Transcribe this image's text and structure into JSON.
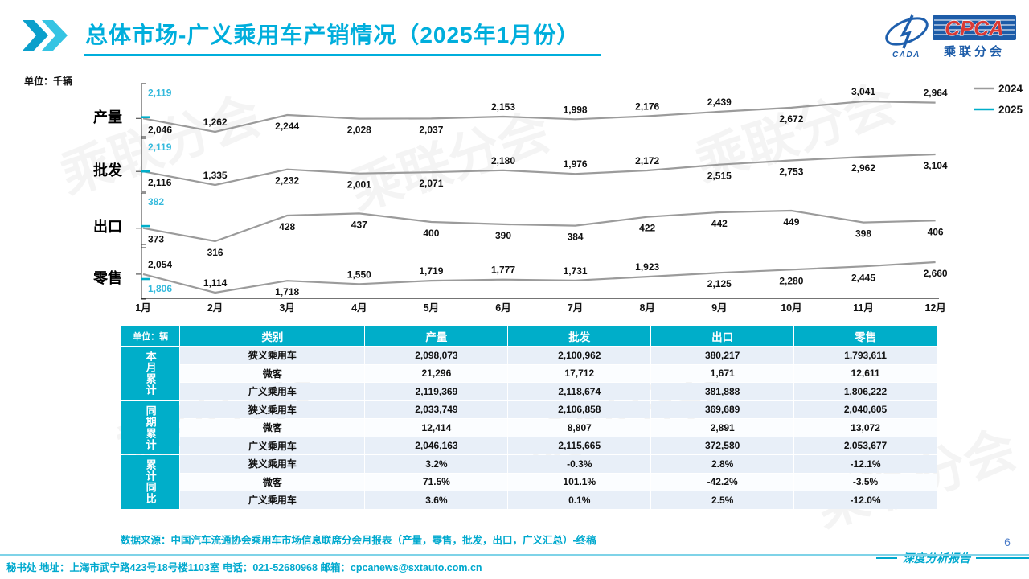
{
  "page": {
    "title": "总体市场-广义乘用车产销情况（2025年1月份）",
    "page_number": "6",
    "report_tag": "深度分析报告",
    "data_source": "数据来源：中国汽车流通协会乘用车市场信息联席分会月报表（产量，零售，批发，出口，广义汇总）-终稿",
    "footer": "秘书处  地址：上海市武宁路423号18号楼1103室 电话：021-52680968  邮箱：cpcanews@sxtauto.com.cn"
  },
  "logo": {
    "cada": "CADA",
    "cpca": "CPCA",
    "subtitle": "乘联分会",
    "watermark_text": "乘联分会"
  },
  "colors": {
    "accent": "#00AEC9",
    "title": "#00AEDC",
    "teal_label": "#33B9DC",
    "gray_line": "#9B9B9B",
    "page_number_blue": "#4A7BC8",
    "row_alt": "#E8EFF8"
  },
  "chart_data": {
    "type": "line",
    "unit_label": "单位：千辆",
    "x_categories": [
      "1月",
      "2月",
      "3月",
      "4月",
      "5月",
      "6月",
      "7月",
      "8月",
      "9月",
      "10月",
      "11月",
      "12月"
    ],
    "legend": [
      {
        "label": "2024",
        "color": "#9B9B9B"
      },
      {
        "label": "2025",
        "color": "#00AEC9"
      }
    ],
    "rows": [
      {
        "key": "production",
        "label": "产量",
        "values_2024": [
          2046,
          1262,
          2244,
          2028,
          2037,
          2153,
          1998,
          2176,
          2439,
          2672,
          3041,
          2964
        ],
        "value_2025_jan": 2119,
        "label_sides": [
          "b",
          "a",
          "b",
          "b",
          "b",
          "a",
          "a",
          "a",
          "a",
          "b",
          "a",
          "a"
        ],
        "jan_2025_side": "a"
      },
      {
        "key": "wholesale",
        "label": "批发",
        "values_2024": [
          2116,
          1335,
          2232,
          2001,
          2071,
          2180,
          1976,
          2172,
          2515,
          2753,
          2962,
          3104
        ],
        "value_2025_jan": 2119,
        "label_sides": [
          "b",
          "a",
          "b",
          "b",
          "b",
          "a",
          "a",
          "a",
          "b",
          "b",
          "b",
          "b"
        ],
        "jan_2025_side": "a"
      },
      {
        "key": "export",
        "label": "出口",
        "values_2024": [
          373,
          316,
          428,
          437,
          400,
          390,
          384,
          422,
          442,
          449,
          398,
          406
        ],
        "value_2025_jan": 382,
        "label_sides": [
          "b",
          "b",
          "b",
          "b",
          "b",
          "b",
          "b",
          "b",
          "b",
          "b",
          "b",
          "b"
        ],
        "jan_2025_side": "a"
      },
      {
        "key": "retail",
        "label": "零售",
        "values_2024": [
          2054,
          1114,
          1718,
          1550,
          1719,
          1777,
          1731,
          1923,
          2125,
          2280,
          2445,
          2660
        ],
        "value_2025_jan": 1806,
        "label_sides": [
          "a",
          "a",
          "b",
          "a",
          "a",
          "a",
          "a",
          "a",
          "b",
          "b",
          "b",
          "b"
        ],
        "jan_2025_side": "b"
      }
    ]
  },
  "table": {
    "unit_label": "单位：辆",
    "columns": [
      "类别",
      "产量",
      "批发",
      "出口",
      "零售"
    ],
    "groups": [
      {
        "label": "本月累计",
        "rows": [
          {
            "category": "狭义乘用车",
            "values": [
              "2,098,073",
              "2,100,962",
              "380,217",
              "1,793,611"
            ]
          },
          {
            "category": "微客",
            "values": [
              "21,296",
              "17,712",
              "1,671",
              "12,611"
            ]
          },
          {
            "category": "广义乘用车",
            "values": [
              "2,119,369",
              "2,118,674",
              "381,888",
              "1,806,222"
            ]
          }
        ]
      },
      {
        "label": "同期累计",
        "rows": [
          {
            "category": "狭义乘用车",
            "values": [
              "2,033,749",
              "2,106,858",
              "369,689",
              "2,040,605"
            ]
          },
          {
            "category": "微客",
            "values": [
              "12,414",
              "8,807",
              "2,891",
              "13,072"
            ]
          },
          {
            "category": "广义乘用车",
            "values": [
              "2,046,163",
              "2,115,665",
              "372,580",
              "2,053,677"
            ]
          }
        ]
      },
      {
        "label": "累计同比",
        "rows": [
          {
            "category": "狭义乘用车",
            "values": [
              "3.2%",
              "-0.3%",
              "2.8%",
              "-12.1%"
            ]
          },
          {
            "category": "微客",
            "values": [
              "71.5%",
              "101.1%",
              "-42.2%",
              "-3.5%"
            ]
          },
          {
            "category": "广义乘用车",
            "values": [
              "3.6%",
              "0.1%",
              "2.5%",
              "-12.0%"
            ]
          }
        ]
      }
    ]
  }
}
